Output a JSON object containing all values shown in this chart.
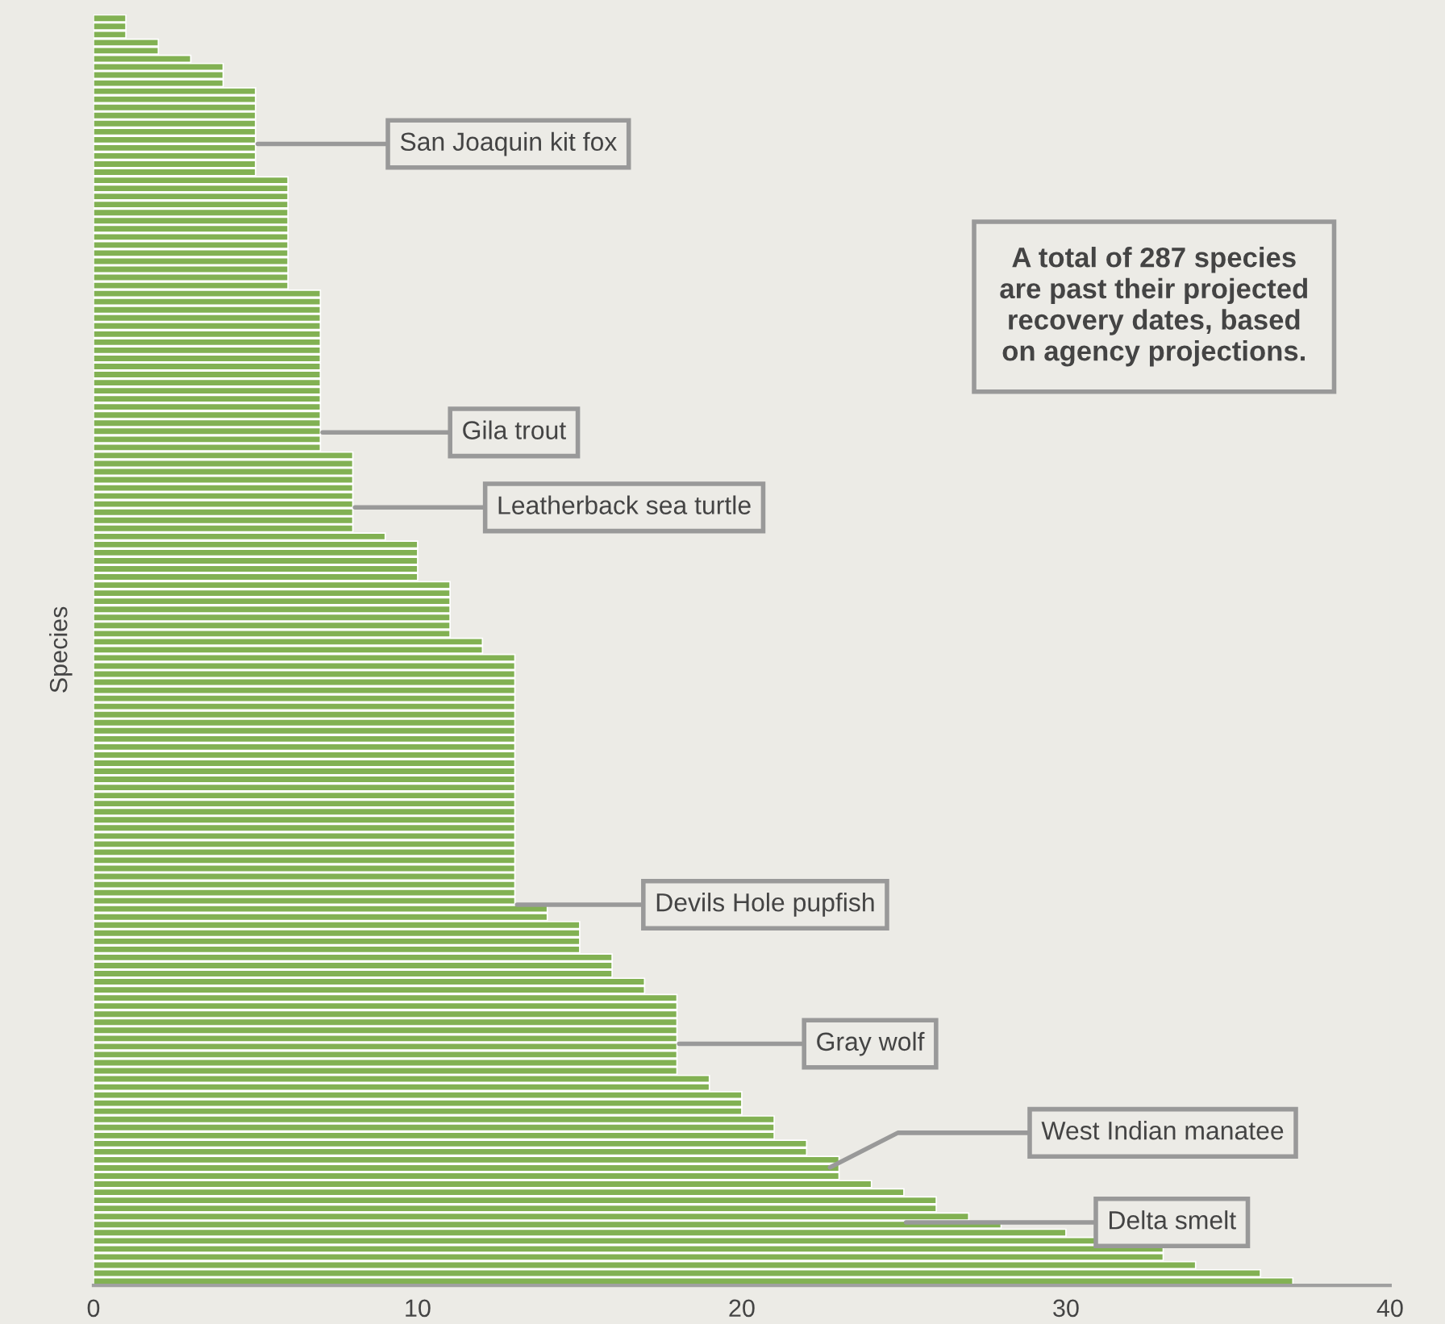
{
  "chart_data": {
    "type": "bar",
    "orientation": "horizontal",
    "ylabel": "Species",
    "categories": [
      null,
      null,
      null,
      null,
      null,
      null,
      null,
      null,
      null,
      null,
      null,
      null,
      null,
      null,
      null,
      null,
      null,
      null,
      null,
      null,
      null,
      null,
      null,
      null,
      null,
      null,
      null,
      null,
      null,
      null,
      null,
      null,
      null,
      null,
      null,
      null,
      null,
      null,
      null,
      null,
      null,
      null,
      null,
      null,
      null,
      null,
      null,
      null,
      null,
      null,
      null,
      null,
      null,
      null,
      null,
      null,
      null,
      null,
      null,
      null,
      null,
      null,
      null,
      null,
      null,
      null,
      null,
      null,
      null,
      null,
      null,
      null,
      null,
      null,
      null,
      null,
      null,
      null,
      null,
      null,
      null,
      null,
      null,
      null,
      null,
      null,
      null,
      null,
      null,
      null,
      null,
      null,
      null,
      null,
      null,
      null,
      null,
      null,
      null,
      null,
      null,
      null,
      null,
      null,
      null,
      null,
      null,
      null,
      null,
      null,
      null,
      null,
      null,
      null,
      null,
      null,
      null,
      null,
      null,
      null,
      null,
      null,
      null,
      null,
      null,
      null,
      null,
      null,
      null,
      null,
      null,
      null,
      null,
      null,
      null,
      null,
      null,
      null,
      null,
      null,
      null,
      null,
      null,
      null,
      null,
      null,
      null,
      null,
      null,
      null,
      null,
      null,
      null,
      null,
      null,
      null,
      null
    ],
    "values": [
      1,
      1,
      1,
      2,
      2,
      3,
      4,
      4,
      4,
      5,
      5,
      5,
      5,
      5,
      5,
      5,
      5,
      5,
      5,
      5,
      6,
      6,
      6,
      6,
      6,
      6,
      6,
      6,
      6,
      6,
      6,
      6,
      6,
      6,
      7,
      7,
      7,
      7,
      7,
      7,
      7,
      7,
      7,
      7,
      7,
      7,
      7,
      7,
      7,
      7,
      7,
      7,
      7,
      7,
      8,
      8,
      8,
      8,
      8,
      8,
      8,
      8,
      8,
      8,
      9,
      10,
      10,
      10,
      10,
      10,
      11,
      11,
      11,
      11,
      11,
      11,
      11,
      12,
      12,
      13,
      13,
      13,
      13,
      13,
      13,
      13,
      13,
      13,
      13,
      13,
      13,
      13,
      13,
      13,
      13,
      13,
      13,
      13,
      13,
      13,
      13,
      13,
      13,
      13,
      13,
      13,
      13,
      13,
      13,
      13,
      14,
      14,
      15,
      15,
      15,
      15,
      16,
      16,
      16,
      17,
      17,
      18,
      18,
      18,
      18,
      18,
      18,
      18,
      18,
      18,
      18,
      19,
      19,
      20,
      20,
      20,
      21,
      21,
      21,
      22,
      22,
      23,
      23,
      23,
      24,
      25,
      26,
      26,
      27,
      28,
      30,
      31,
      33,
      33,
      34,
      36,
      37
    ],
    "color": "#82b153",
    "xlim": [
      0,
      40
    ],
    "xticks": [
      0,
      10,
      20,
      30,
      40
    ],
    "annotations": [
      {
        "text": "San Joaquin kit fox",
        "x": 5
      },
      {
        "text": "Gila trout",
        "x": 7
      },
      {
        "text": "Leatherback sea turtle",
        "x": 8
      },
      {
        "text": "Devils Hole pupfish",
        "x": 13
      },
      {
        "text": "Gray wolf",
        "x": 18
      },
      "West Indian manatee",
      {
        "text": "Delta smelt",
        "x": 25
      },
      "A total of 287 species\nare past their projected\nrecovery dates, based\non agency projections."
    ]
  }
}
